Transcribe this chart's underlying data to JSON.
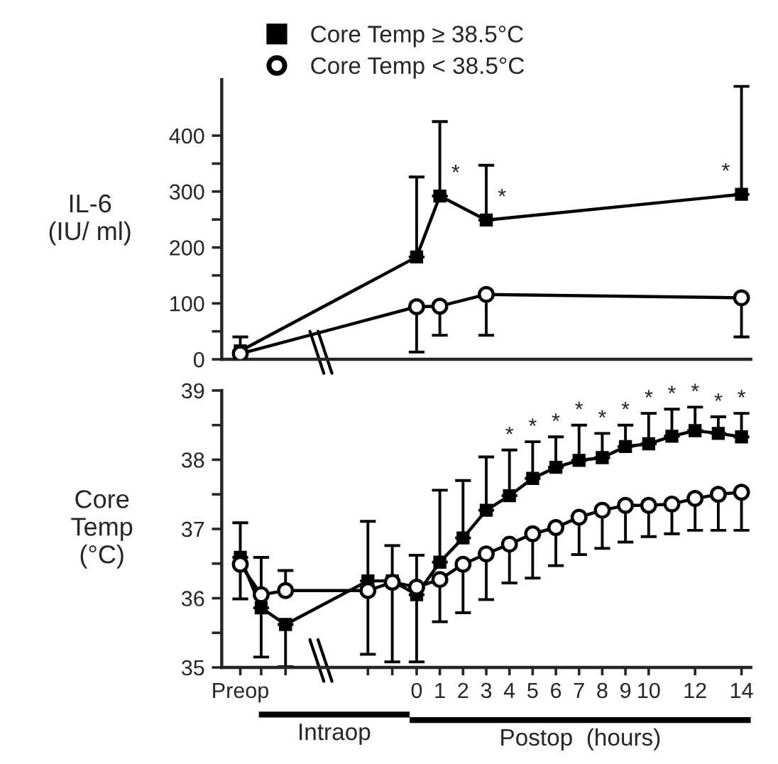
{
  "chart_data": [
    {
      "type": "line",
      "ylabel": "IL-6\n(IU/ ml)",
      "x": [
        -7.6,
        0,
        1,
        3,
        14
      ],
      "xlim": [
        -8.4,
        14.4
      ],
      "ylim": [
        0,
        500
      ],
      "yticks": [
        0,
        {
          "value": 50,
          "label": null
        },
        100,
        {
          "value": 150,
          "label": null
        },
        200,
        {
          "value": 250,
          "label": null
        },
        300,
        {
          "value": 350,
          "label": null
        },
        400
      ],
      "tick_labels": "y",
      "legend": "top",
      "grid": false,
      "series": [
        {
          "name": "Core Temp ≥ 38.5°C",
          "color": "#000000",
          "marker": "square",
          "values": [
            15,
            183,
            292,
            249,
            295
          ],
          "errors": [
            [
              15,
              40
            ],
            [
              183,
              326
            ],
            [
              292,
              425
            ],
            [
              249,
              347
            ],
            [
              295,
              488
            ]
          ]
        },
        {
          "name": "Core Temp < 38.5°C",
          "color": "#000000",
          "marker": "circle",
          "values": [
            10,
            94,
            95,
            116,
            110
          ],
          "errors": [
            null,
            [
              13,
              94
            ],
            [
              43,
              95
            ],
            [
              43,
              116
            ],
            [
              40,
              110
            ]
          ]
        }
      ],
      "annotations": [
        {
          "text": "*",
          "x": 1,
          "y": 292
        },
        {
          "text": "*",
          "x": 3,
          "y": 249
        },
        {
          "text": "*",
          "x": 14,
          "y": 295
        }
      ]
    },
    {
      "type": "line",
      "ylabel": "Core\nTemp\n(°C)",
      "x": [
        -7.6,
        -6.7,
        -5.65,
        -2.1,
        -1.05,
        0,
        1,
        2,
        3,
        4,
        5,
        6,
        7,
        8,
        9,
        10,
        11,
        12,
        13,
        14
      ],
      "xlim": [
        -8.4,
        14.4
      ],
      "ylim": [
        35,
        39
      ],
      "xticks": [
        {
          "value": -7.6,
          "label": "Preop"
        },
        {
          "value": -6.7,
          "label": null
        },
        {
          "value": -5.65,
          "label": null
        },
        {
          "value": -2.1,
          "label": null
        },
        {
          "value": -1.05,
          "label": null
        },
        0,
        1,
        2,
        3,
        4,
        5,
        6,
        7,
        8,
        9,
        10,
        12,
        14
      ],
      "yticks": [
        35,
        {
          "value": 35.5,
          "label": null
        },
        36,
        {
          "value": 36.5,
          "label": null
        },
        37,
        {
          "value": 37.5,
          "label": null
        },
        38,
        {
          "value": 38.5,
          "label": null
        },
        39
      ],
      "grid": false,
      "series": [
        {
          "color": "#000000",
          "marker": "square",
          "values": [
            36.59,
            35.86,
            35.62,
            36.25,
            36.25,
            36.05,
            36.52,
            36.87,
            37.27,
            37.48,
            37.73,
            37.89,
            37.99,
            38.03,
            38.19,
            38.23,
            38.34,
            38.42,
            38.38,
            38.33
          ],
          "errors": [
            [
              36.59,
              37.09
            ],
            [
              35.15,
              35.86
            ],
            [
              35.01,
              35.62
            ],
            [
              36.25,
              37.11
            ],
            [
              36.25,
              36.76
            ],
            [
              36.05,
              36.62
            ],
            [
              36.52,
              37.56
            ],
            [
              36.87,
              37.7
            ],
            [
              37.27,
              38.04
            ],
            [
              37.48,
              38.14
            ],
            [
              37.73,
              38.26
            ],
            [
              37.89,
              38.33
            ],
            [
              37.99,
              38.5
            ],
            [
              38.03,
              38.38
            ],
            [
              38.19,
              38.5
            ],
            [
              38.23,
              38.67
            ],
            [
              38.34,
              38.73
            ],
            [
              38.42,
              38.76
            ],
            [
              38.38,
              38.62
            ],
            [
              38.33,
              38.67
            ]
          ]
        },
        {
          "color": "#000000",
          "marker": "circle",
          "values": [
            36.49,
            36.05,
            36.11,
            36.11,
            36.23,
            36.16,
            36.27,
            36.49,
            36.64,
            36.78,
            36.93,
            37.02,
            37.17,
            37.27,
            37.34,
            37.34,
            37.36,
            37.44,
            37.5,
            37.53
          ],
          "errors": [
            [
              35.99,
              36.49
            ],
            [
              36.05,
              36.59
            ],
            [
              36.11,
              36.4
            ],
            [
              35.19,
              36.11
            ],
            [
              35.08,
              36.23
            ],
            [
              35.08,
              36.16
            ],
            [
              35.66,
              36.27
            ],
            [
              35.79,
              36.49
            ],
            [
              35.98,
              36.64
            ],
            [
              36.22,
              36.78
            ],
            [
              36.29,
              36.93
            ],
            [
              36.47,
              37.02
            ],
            [
              36.63,
              37.17
            ],
            [
              36.72,
              37.27
            ],
            [
              36.81,
              37.34
            ],
            [
              36.89,
              37.34
            ],
            [
              36.93,
              37.36
            ],
            [
              36.98,
              37.44
            ],
            [
              36.98,
              37.5
            ],
            [
              36.98,
              37.53
            ]
          ]
        }
      ],
      "annotations": [
        {
          "text": "*",
          "x": 4,
          "y": 38.14
        },
        {
          "text": "*",
          "x": 5,
          "y": 38.26
        },
        {
          "text": "*",
          "x": 6,
          "y": 38.33
        },
        {
          "text": "*",
          "x": 7,
          "y": 38.5
        },
        {
          "text": "*",
          "x": 8,
          "y": 38.38
        },
        {
          "text": "*",
          "x": 9,
          "y": 38.5
        },
        {
          "text": "*",
          "x": 10,
          "y": 38.67
        },
        {
          "text": "*",
          "x": 11,
          "y": 38.73
        },
        {
          "text": "*",
          "x": 12,
          "y": 38.76
        },
        {
          "text": "*",
          "x": 13,
          "y": 38.62
        },
        {
          "text": "*",
          "x": 14,
          "y": 38.67
        },
        "Intraop",
        "Postop  (hours)"
      ]
    }
  ]
}
